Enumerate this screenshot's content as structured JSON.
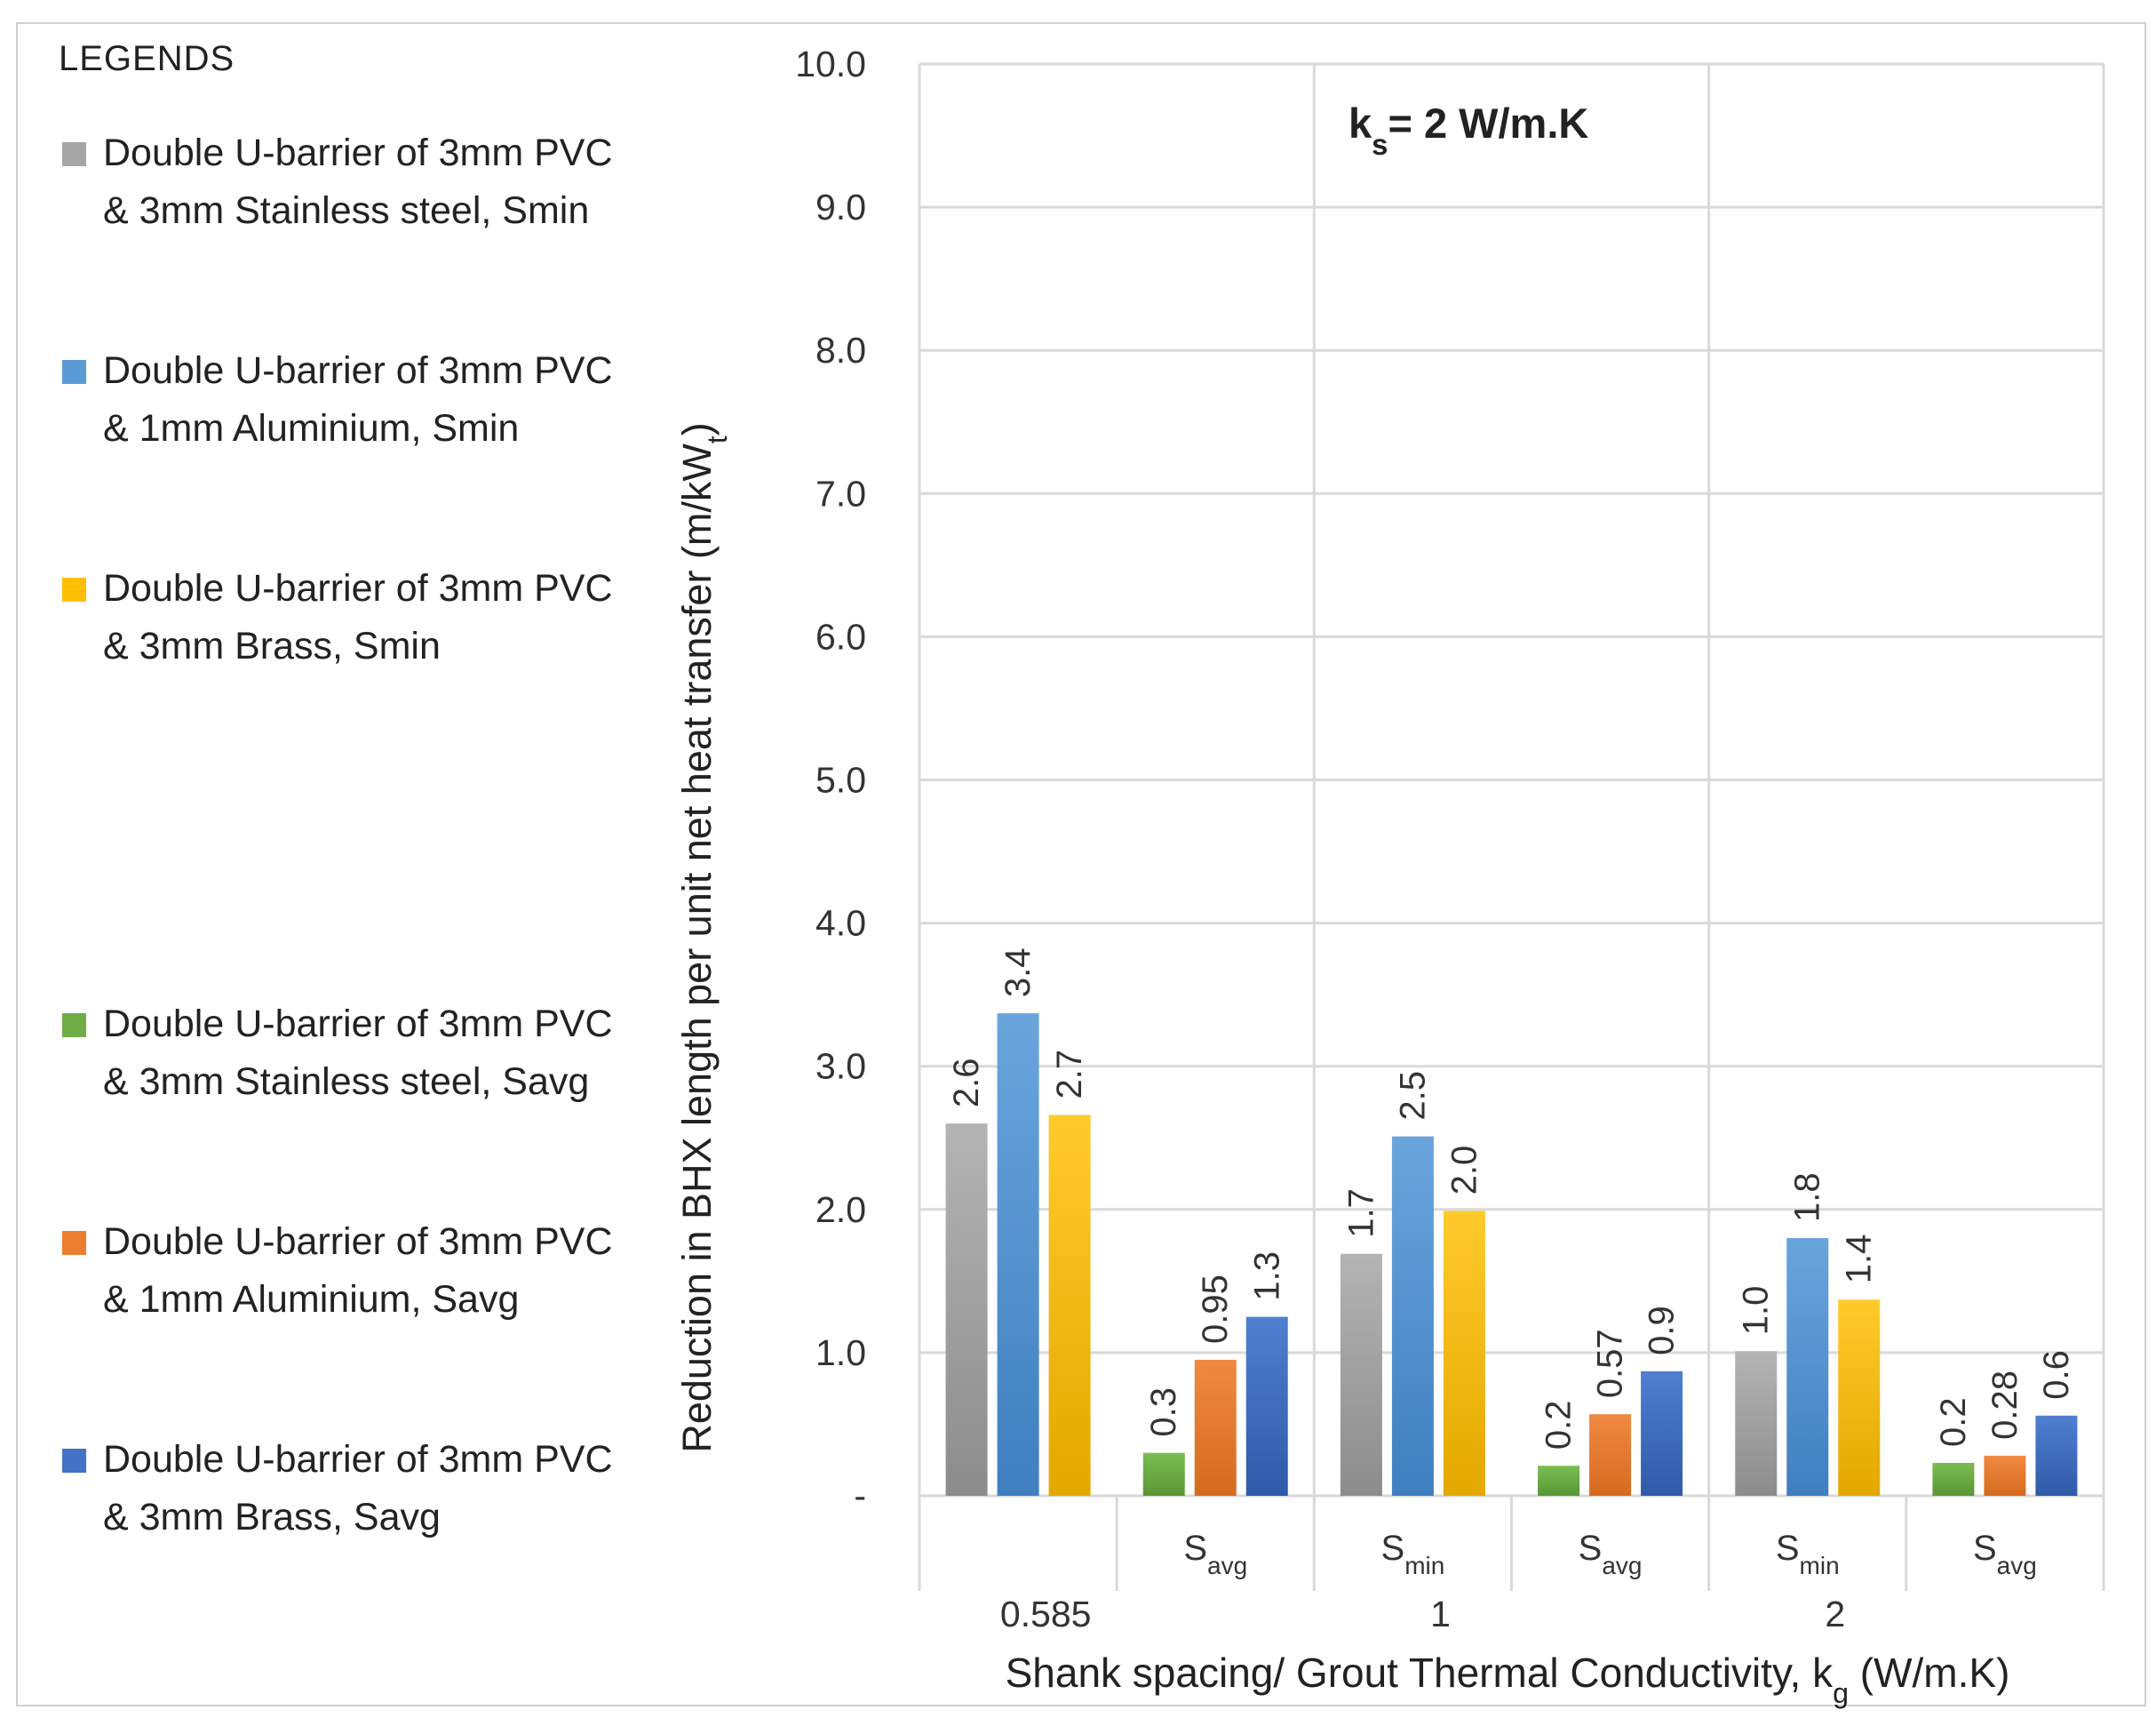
{
  "legend": {
    "title": "LEGENDS",
    "items": [
      {
        "label": "Double  U-barrier of 3mm PVC & 3mm Stainless steel, Smin",
        "color": "#a5a5a5"
      },
      {
        "label": "Double  U-barrier of 3mm PVC & 1mm Aluminium, Smin",
        "color": "#5b9bd5"
      },
      {
        "label": "Double  U-barrier of 3mm PVC & 3mm Brass, Smin",
        "color": "#ffc000"
      },
      {
        "label": "Double  U-barrier of 3mm PVC & 3mm Stainless steel, Savg",
        "color": "#70ad47"
      },
      {
        "label": "Double  U-barrier of 3mm PVC & 1mm Aluminium, Savg",
        "color": "#ed7d31"
      },
      {
        "label": "Double  U-barrier of 3mm PVC & 3mm Brass, Savg",
        "color": "#4472c4"
      }
    ]
  },
  "chart_data": {
    "type": "bar",
    "title": "",
    "annotation": {
      "base": "k",
      "sub": "s",
      "rest": "= 2 W/m.K"
    },
    "xlabel": {
      "text": "Shank spacing/ Grout Thermal Conductivity,  k",
      "sub": "g",
      "rest": " (W/m.K)"
    },
    "ylabel": {
      "text": "Reduction in BHX length per unit net heat transfer (m/kW",
      "sub": "t",
      "rest": ")"
    },
    "ylim": [
      0,
      10
    ],
    "yticks": [
      {
        "value": 0,
        "label": "-"
      },
      {
        "value": 1,
        "label": "1.0"
      },
      {
        "value": 2,
        "label": "2.0"
      },
      {
        "value": 3,
        "label": "3.0"
      },
      {
        "value": 4,
        "label": "4.0"
      },
      {
        "value": 5,
        "label": "5.0"
      },
      {
        "value": 6,
        "label": "6.0"
      },
      {
        "value": 7,
        "label": "7.0"
      },
      {
        "value": 8,
        "label": "8.0"
      },
      {
        "value": 9,
        "label": "9.0"
      },
      {
        "value": 10,
        "label": "10.0"
      }
    ],
    "groups": [
      {
        "kg": "0.585",
        "spacings": [
          {
            "name": "",
            "base": "S",
            "sub": "min",
            "show": false,
            "bars": [
              {
                "series": 0,
                "value": 2.6,
                "label": "2.6"
              },
              {
                "series": 1,
                "value": 3.37,
                "label": "3.4"
              },
              {
                "series": 2,
                "value": 2.66,
                "label": "2.7"
              }
            ]
          },
          {
            "name": "Savg",
            "base": "S",
            "sub": "avg",
            "show": true,
            "bars": [
              {
                "series": 3,
                "value": 0.3,
                "label": "0.3"
              },
              {
                "series": 4,
                "value": 0.95,
                "label": "0.95"
              },
              {
                "series": 5,
                "value": 1.25,
                "label": "1.3"
              }
            ]
          }
        ]
      },
      {
        "kg": "1",
        "spacings": [
          {
            "name": "Smin",
            "base": "S",
            "sub": "min",
            "show": true,
            "bars": [
              {
                "series": 0,
                "value": 1.69,
                "label": "1.7"
              },
              {
                "series": 1,
                "value": 2.51,
                "label": "2.5"
              },
              {
                "series": 2,
                "value": 1.99,
                "label": "2.0"
              }
            ]
          },
          {
            "name": "Savg",
            "base": "S",
            "sub": "avg",
            "show": true,
            "bars": [
              {
                "series": 3,
                "value": 0.21,
                "label": "0.2"
              },
              {
                "series": 4,
                "value": 0.57,
                "label": "0.57"
              },
              {
                "series": 5,
                "value": 0.87,
                "label": "0.9"
              }
            ]
          }
        ]
      },
      {
        "kg": "2",
        "spacings": [
          {
            "name": "Smin",
            "base": "S",
            "sub": "min",
            "show": true,
            "bars": [
              {
                "series": 0,
                "value": 1.01,
                "label": "1.0"
              },
              {
                "series": 1,
                "value": 1.8,
                "label": "1.8"
              },
              {
                "series": 2,
                "value": 1.37,
                "label": "1.4"
              }
            ]
          },
          {
            "name": "Savg",
            "base": "S",
            "sub": "avg",
            "show": true,
            "bars": [
              {
                "series": 3,
                "value": 0.23,
                "label": "0.2"
              },
              {
                "series": 4,
                "value": 0.28,
                "label": "0.28"
              },
              {
                "series": 5,
                "value": 0.56,
                "label": "0.6"
              }
            ]
          }
        ]
      }
    ]
  }
}
